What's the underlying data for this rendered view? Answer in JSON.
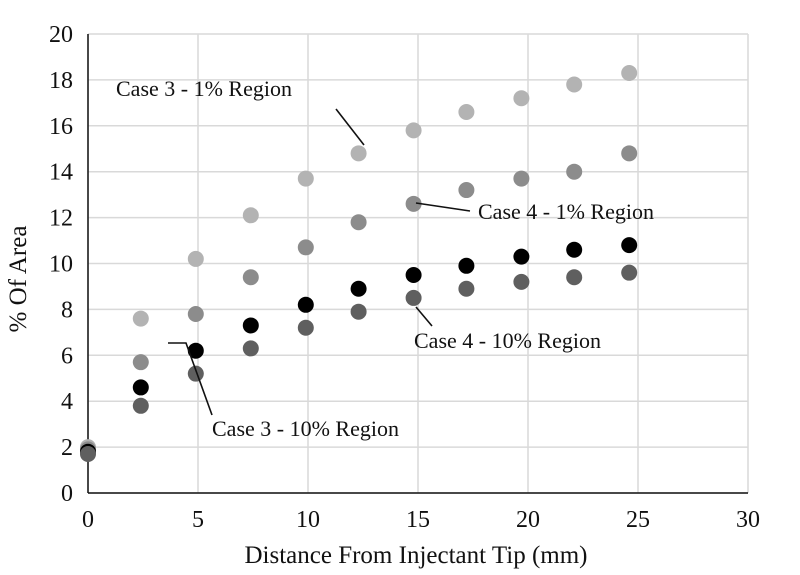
{
  "chart_data": {
    "type": "scatter",
    "xlabel": "Distance From Injectant Tip (mm)",
    "ylabel": "% Of Area",
    "xlim": [
      0,
      30
    ],
    "ylim": [
      0,
      20
    ],
    "xticks": [
      0,
      5,
      10,
      15,
      20,
      25,
      30
    ],
    "yticks": [
      0,
      2,
      4,
      6,
      8,
      10,
      12,
      14,
      16,
      18,
      20
    ],
    "grid": true,
    "legend": "none",
    "series": [
      {
        "name": "Case 3 - 1% Region",
        "color": "#b3b3b3",
        "x": [
          0,
          2.4,
          4.9,
          7.4,
          9.9,
          12.3,
          14.8,
          17.2,
          19.7,
          22.1,
          24.6
        ],
        "y": [
          2.0,
          7.6,
          10.2,
          12.1,
          13.7,
          14.8,
          15.8,
          16.6,
          17.2,
          17.8,
          18.3
        ]
      },
      {
        "name": "Case 4 - 1% Region",
        "color": "#8c8c8c",
        "x": [
          0,
          2.4,
          4.9,
          7.4,
          9.9,
          12.3,
          14.8,
          17.2,
          19.7,
          22.1,
          24.6
        ],
        "y": [
          1.9,
          5.7,
          7.8,
          9.4,
          10.7,
          11.8,
          12.6,
          13.2,
          13.7,
          14.0,
          14.8
        ]
      },
      {
        "name": "Case 3 - 10% Region",
        "color": "#000000",
        "x": [
          0,
          2.4,
          4.9,
          7.4,
          9.9,
          12.3,
          14.8,
          17.2,
          19.7,
          22.1,
          24.6
        ],
        "y": [
          1.8,
          4.6,
          6.2,
          7.3,
          8.2,
          8.9,
          9.5,
          9.9,
          10.3,
          10.6,
          10.8
        ]
      },
      {
        "name": "Case 4 - 10% Region",
        "color": "#5f5f5f",
        "x": [
          0,
          2.4,
          4.9,
          7.4,
          9.9,
          12.3,
          14.8,
          17.2,
          19.7,
          22.1,
          24.6
        ],
        "y": [
          1.7,
          3.8,
          5.2,
          6.3,
          7.2,
          7.9,
          8.5,
          8.9,
          9.2,
          9.4,
          9.6
        ]
      }
    ],
    "annotations": [
      {
        "text": "Case 3 - 1% Region"
      },
      {
        "text": "Case 4 - 1% Region"
      },
      {
        "text": "Case 4 - 10% Region"
      },
      {
        "text": "Case 3 - 10% Region"
      }
    ]
  }
}
